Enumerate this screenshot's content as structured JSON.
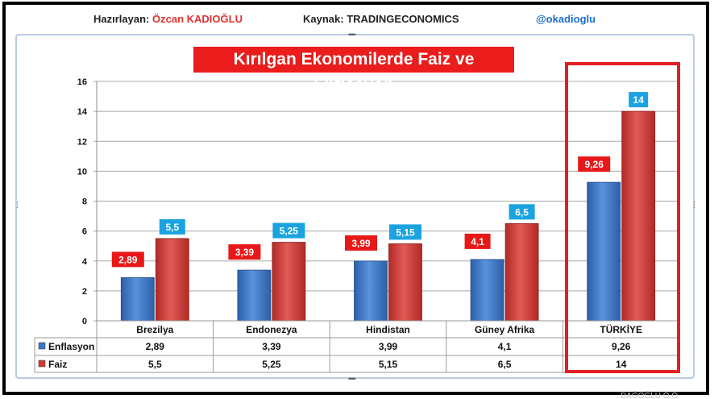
{
  "header": {
    "prepared_by_label": "Hazırlayan:",
    "prepared_by_name": "Özcan KADIOĞLU",
    "source": "Kaynak: TRADINGECONOMICS",
    "handle": "@okadioglu"
  },
  "watermark": "DAĞOĞLU.Ö.Ö",
  "colors": {
    "enflasyon": "#3b78c8",
    "faiz": "#d63a36",
    "enflasyon_label_bg": "#e81818",
    "faiz_label_bg": "#1aa3e0",
    "highlight": "#e31e24",
    "title_bg": "#ea1c1c"
  },
  "chart_data": {
    "type": "bar",
    "title": "Kırılgan Ekonomilerde Faiz ve Enflasyon",
    "categories": [
      "Brezilya",
      "Endonezya",
      "Hindistan",
      "Güney Afrika",
      "TÜRKİYE"
    ],
    "series": [
      {
        "name": "Enflasyon",
        "values": [
          2.89,
          3.39,
          3.99,
          4.1,
          9.26
        ],
        "labels": [
          "2,89",
          "3,39",
          "3,99",
          "4,1",
          "9,26"
        ]
      },
      {
        "name": "Faiz",
        "values": [
          5.5,
          5.25,
          5.15,
          6.5,
          14
        ],
        "labels": [
          "5,5",
          "5,25",
          "5,15",
          "6,5",
          "14"
        ]
      }
    ],
    "ylim": [
      0,
      16
    ],
    "yticks": [
      "0",
      "2",
      "4",
      "6",
      "8",
      "10",
      "12",
      "14",
      "16"
    ],
    "xlabel": "",
    "ylabel": "",
    "legend": "data-table",
    "highlighted_category": "TÜRKİYE"
  }
}
